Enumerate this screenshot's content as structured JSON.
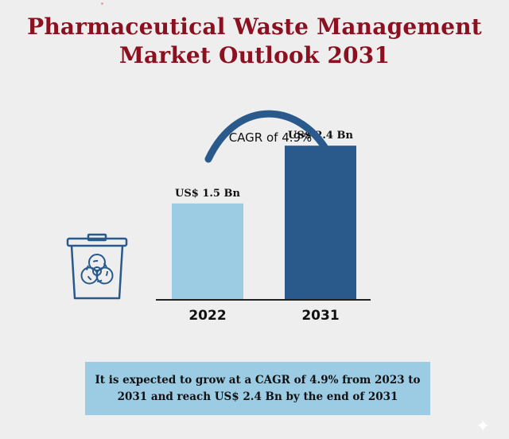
{
  "title": {
    "line1": "Pharmaceutical Waste Management",
    "line2": "Market Outlook 2031"
  },
  "chart_data": {
    "type": "bar",
    "categories": [
      "2022",
      "2031"
    ],
    "values": [
      1.5,
      2.4
    ],
    "value_labels": [
      "US$ 1.5 Bn",
      "US$ 2.4 Bn"
    ],
    "colors": [
      "#9ccbe4",
      "#2a5a8c"
    ],
    "ylim": [
      0,
      2.6
    ],
    "annotation": "CAGR of 4.9%",
    "grid": false
  },
  "note": "It is expected to grow at a CAGR of 4.9% from 2023 to 2031 and reach US$ 2.4 Bn by the end of 2031",
  "icons": {
    "bin": "biohazard-bin-icon",
    "sparkle": "sparkle-icon"
  }
}
